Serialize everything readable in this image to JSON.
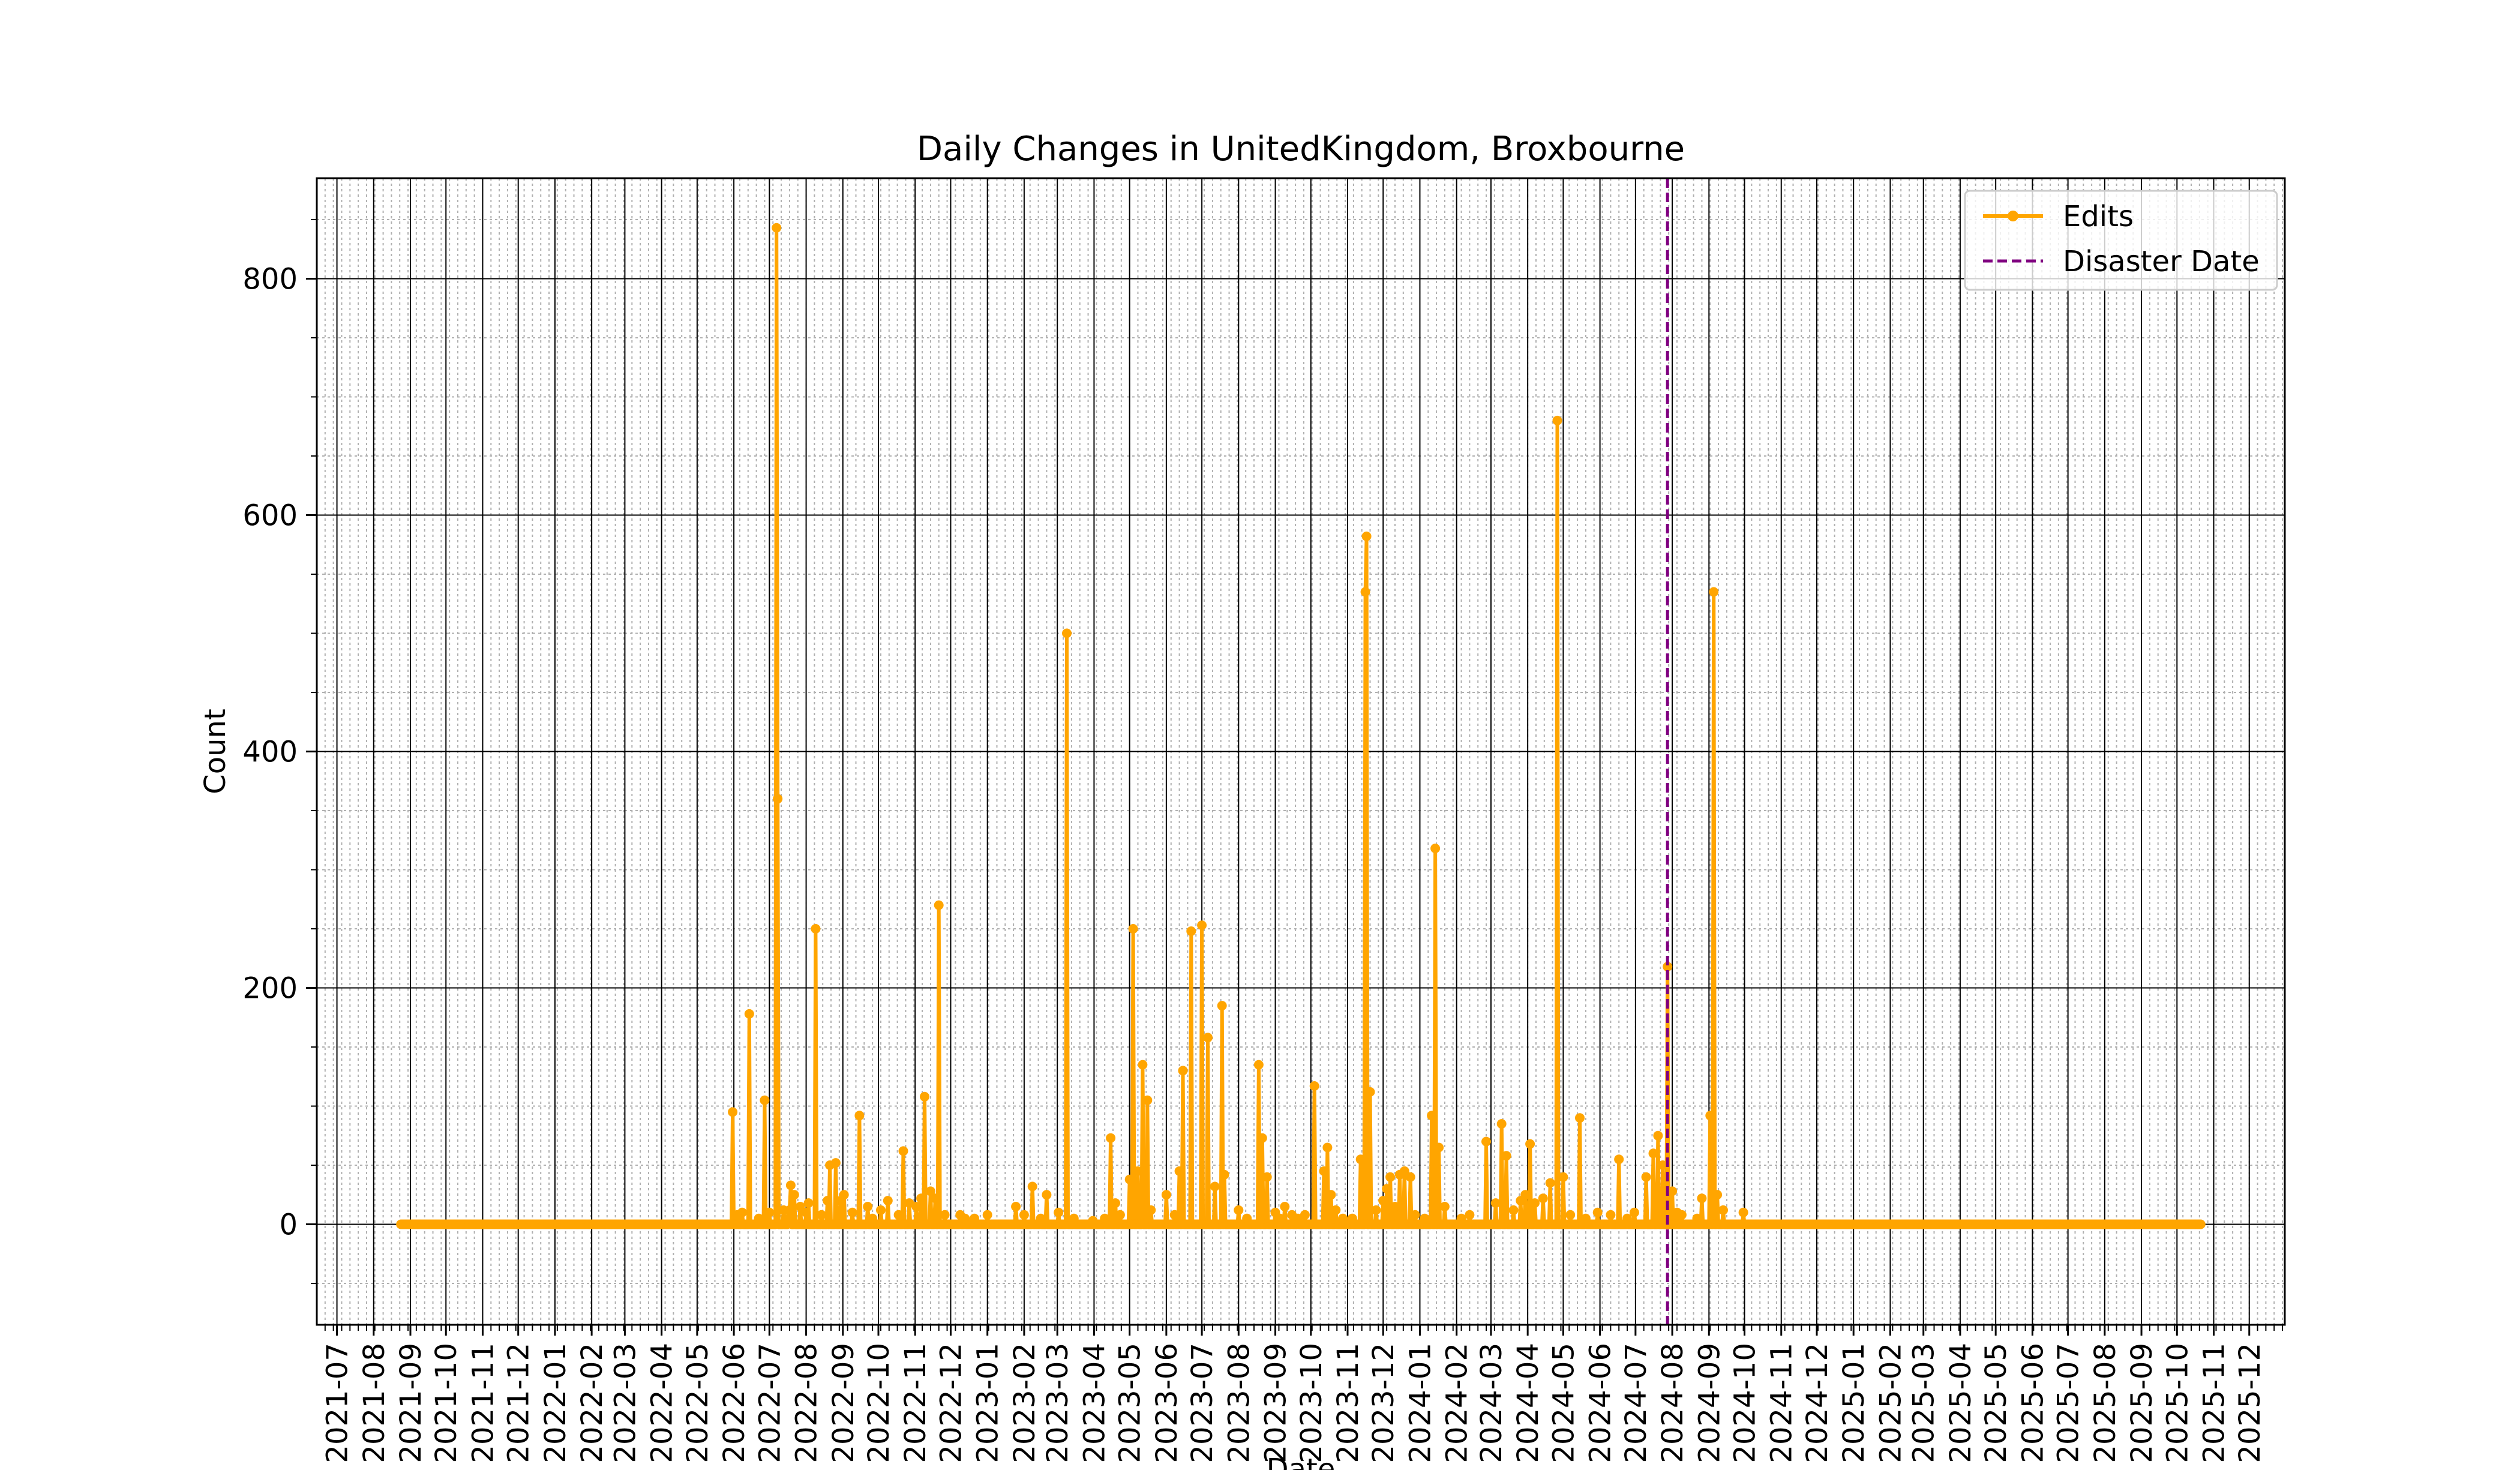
{
  "chart_data": {
    "type": "line",
    "title": "Daily Changes in UnitedKingdom, Broxbourne",
    "xlabel": "Date",
    "ylabel": "Count",
    "ylim": [
      -85,
      885
    ],
    "xlim": [
      "2021-06-14",
      "2025-12-31"
    ],
    "y_ticks": [
      0,
      200,
      400,
      600,
      800
    ],
    "x_ticks": [
      "2021-07",
      "2021-08",
      "2021-09",
      "2021-10",
      "2021-11",
      "2021-12",
      "2022-01",
      "2022-02",
      "2022-03",
      "2022-04",
      "2022-05",
      "2022-06",
      "2022-07",
      "2022-08",
      "2022-09",
      "2022-10",
      "2022-11",
      "2022-12",
      "2023-01",
      "2023-02",
      "2023-03",
      "2023-04",
      "2023-05",
      "2023-06",
      "2023-07",
      "2023-08",
      "2023-09",
      "2023-10",
      "2023-11",
      "2023-12",
      "2024-01",
      "2024-02",
      "2024-03",
      "2024-04",
      "2024-05",
      "2024-06",
      "2024-07",
      "2024-08",
      "2024-09",
      "2024-10",
      "2024-11",
      "2024-12",
      "2025-01",
      "2025-02",
      "2025-03",
      "2025-04",
      "2025-05",
      "2025-06",
      "2025-07",
      "2025-08",
      "2025-09",
      "2025-10",
      "2025-11",
      "2025-12"
    ],
    "grid": true,
    "legend_position": "upper right",
    "baseline_range": [
      "2021-08-24",
      "2025-10-21"
    ],
    "series": [
      {
        "name": "Edits",
        "color": "#ffa500",
        "points": [
          [
            "2022-05-31",
            95
          ],
          [
            "2022-06-04",
            8
          ],
          [
            "2022-06-08",
            10
          ],
          [
            "2022-06-14",
            178
          ],
          [
            "2022-06-22",
            5
          ],
          [
            "2022-06-27",
            105
          ],
          [
            "2022-07-01",
            10
          ],
          [
            "2022-07-07",
            843
          ],
          [
            "2022-07-08",
            360
          ],
          [
            "2022-07-13",
            12
          ],
          [
            "2022-07-17",
            5
          ],
          [
            "2022-07-18",
            12
          ],
          [
            "2022-07-19",
            33
          ],
          [
            "2022-07-22",
            25
          ],
          [
            "2022-07-27",
            15
          ],
          [
            "2022-08-01",
            10
          ],
          [
            "2022-08-03",
            18
          ],
          [
            "2022-08-09",
            250
          ],
          [
            "2022-08-14",
            8
          ],
          [
            "2022-08-19",
            20
          ],
          [
            "2022-08-21",
            50
          ],
          [
            "2022-08-26",
            52
          ],
          [
            "2022-08-30",
            20
          ],
          [
            "2022-09-02",
            25
          ],
          [
            "2022-09-09",
            10
          ],
          [
            "2022-09-15",
            92
          ],
          [
            "2022-09-22",
            15
          ],
          [
            "2022-09-26",
            5
          ],
          [
            "2022-10-03",
            12
          ],
          [
            "2022-10-09",
            20
          ],
          [
            "2022-10-18",
            8
          ],
          [
            "2022-10-22",
            62
          ],
          [
            "2022-10-27",
            18
          ],
          [
            "2022-11-02",
            15
          ],
          [
            "2022-11-06",
            22
          ],
          [
            "2022-11-09",
            108
          ],
          [
            "2022-11-14",
            28
          ],
          [
            "2022-11-18",
            22
          ],
          [
            "2022-11-21",
            270
          ],
          [
            "2022-11-26",
            8
          ],
          [
            "2022-12-09",
            8
          ],
          [
            "2022-12-13",
            5
          ],
          [
            "2022-12-21",
            5
          ],
          [
            "2023-01-01",
            8
          ],
          [
            "2023-01-25",
            15
          ],
          [
            "2023-02-01",
            8
          ],
          [
            "2023-02-08",
            32
          ],
          [
            "2023-02-15",
            5
          ],
          [
            "2023-02-20",
            25
          ],
          [
            "2023-03-02",
            10
          ],
          [
            "2023-03-09",
            500
          ],
          [
            "2023-03-15",
            5
          ],
          [
            "2023-03-31",
            3
          ],
          [
            "2023-04-10",
            5
          ],
          [
            "2023-04-15",
            73
          ],
          [
            "2023-04-19",
            18
          ],
          [
            "2023-04-23",
            8
          ],
          [
            "2023-05-01",
            38
          ],
          [
            "2023-05-04",
            250
          ],
          [
            "2023-05-08",
            45
          ],
          [
            "2023-05-12",
            135
          ],
          [
            "2023-05-16",
            105
          ],
          [
            "2023-05-19",
            12
          ],
          [
            "2023-06-01",
            25
          ],
          [
            "2023-06-08",
            8
          ],
          [
            "2023-06-12",
            45
          ],
          [
            "2023-06-15",
            130
          ],
          [
            "2023-06-22",
            248
          ],
          [
            "2023-07-01",
            253
          ],
          [
            "2023-07-06",
            158
          ],
          [
            "2023-07-12",
            32
          ],
          [
            "2023-07-18",
            185
          ],
          [
            "2023-07-20",
            42
          ],
          [
            "2023-08-01",
            12
          ],
          [
            "2023-08-08",
            5
          ],
          [
            "2023-08-18",
            135
          ],
          [
            "2023-08-21",
            73
          ],
          [
            "2023-08-25",
            40
          ],
          [
            "2023-09-01",
            10
          ],
          [
            "2023-09-05",
            5
          ],
          [
            "2023-09-09",
            15
          ],
          [
            "2023-09-15",
            8
          ],
          [
            "2023-09-20",
            5
          ],
          [
            "2023-09-26",
            8
          ],
          [
            "2023-10-04",
            117
          ],
          [
            "2023-10-12",
            45
          ],
          [
            "2023-10-15",
            65
          ],
          [
            "2023-10-18",
            25
          ],
          [
            "2023-10-22",
            12
          ],
          [
            "2023-10-28",
            5
          ],
          [
            "2023-11-05",
            5
          ],
          [
            "2023-11-12",
            55
          ],
          [
            "2023-11-16",
            535
          ],
          [
            "2023-11-17",
            582
          ],
          [
            "2023-11-20",
            112
          ],
          [
            "2023-11-25",
            12
          ],
          [
            "2023-12-01",
            20
          ],
          [
            "2023-12-04",
            30
          ],
          [
            "2023-12-07",
            40
          ],
          [
            "2023-12-11",
            15
          ],
          [
            "2023-12-15",
            42
          ],
          [
            "2023-12-19",
            45
          ],
          [
            "2023-12-24",
            40
          ],
          [
            "2023-12-28",
            8
          ],
          [
            "2024-01-05",
            5
          ],
          [
            "2024-01-11",
            92
          ],
          [
            "2024-01-14",
            318
          ],
          [
            "2024-01-17",
            65
          ],
          [
            "2024-01-22",
            15
          ],
          [
            "2024-02-05",
            5
          ],
          [
            "2024-02-12",
            8
          ],
          [
            "2024-02-26",
            70
          ],
          [
            "2024-03-05",
            18
          ],
          [
            "2024-03-10",
            85
          ],
          [
            "2024-03-14",
            58
          ],
          [
            "2024-03-20",
            12
          ],
          [
            "2024-03-26",
            20
          ],
          [
            "2024-03-30",
            25
          ],
          [
            "2024-04-03",
            68
          ],
          [
            "2024-04-07",
            18
          ],
          [
            "2024-04-14",
            22
          ],
          [
            "2024-04-20",
            35
          ],
          [
            "2024-04-26",
            680
          ],
          [
            "2024-05-01",
            40
          ],
          [
            "2024-05-07",
            8
          ],
          [
            "2024-05-15",
            90
          ],
          [
            "2024-05-20",
            5
          ],
          [
            "2024-05-30",
            10
          ],
          [
            "2024-06-10",
            8
          ],
          [
            "2024-06-17",
            55
          ],
          [
            "2024-06-24",
            5
          ],
          [
            "2024-06-30",
            10
          ],
          [
            "2024-07-10",
            40
          ],
          [
            "2024-07-16",
            60
          ],
          [
            "2024-07-20",
            75
          ],
          [
            "2024-07-24",
            50
          ],
          [
            "2024-07-28",
            218
          ],
          [
            "2024-08-01",
            28
          ],
          [
            "2024-08-05",
            10
          ],
          [
            "2024-08-09",
            8
          ],
          [
            "2024-08-22",
            5
          ],
          [
            "2024-08-26",
            22
          ],
          [
            "2024-09-02",
            92
          ],
          [
            "2024-09-05",
            535
          ],
          [
            "2024-09-08",
            25
          ],
          [
            "2024-09-13",
            12
          ],
          [
            "2024-09-30",
            10
          ]
        ]
      },
      {
        "name": "Disaster Date",
        "color": "#800080",
        "date": "2024-07-28"
      }
    ]
  }
}
